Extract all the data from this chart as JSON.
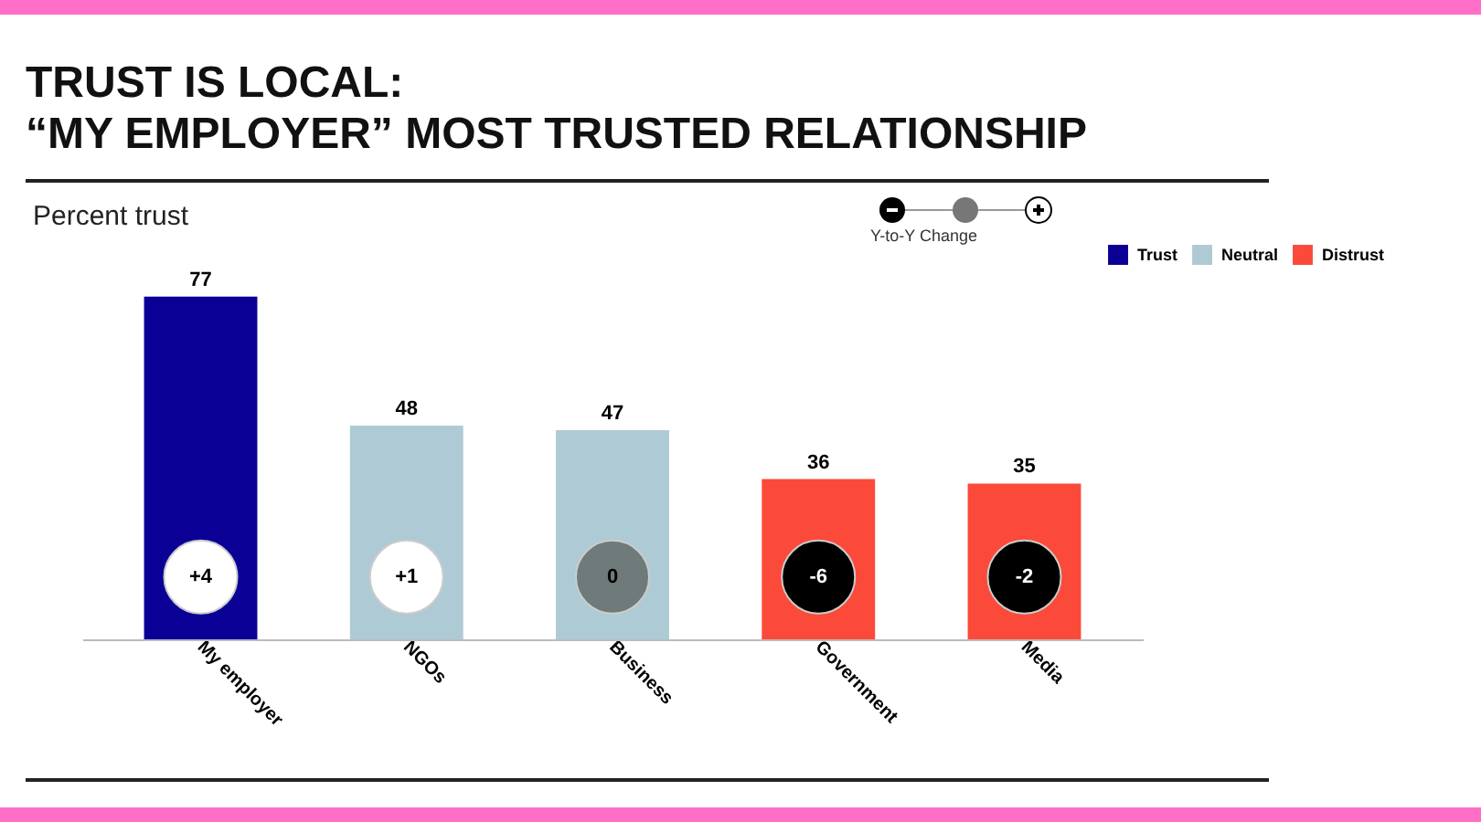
{
  "chart_data": {
    "type": "bar",
    "title": "TRUST IS LOCAL:\n“MY EMPLOYER” MOST TRUSTED RELATIONSHIP",
    "subtitle": "Percent trust",
    "categories": [
      "My employer",
      "NGOs",
      "Business",
      "Government",
      "Media"
    ],
    "series": [
      {
        "name": "Trust",
        "color": "#0a0096",
        "values": [
          77,
          null,
          null,
          null,
          null
        ]
      },
      {
        "name": "Neutral",
        "color": "#aecad5",
        "values": [
          null,
          48,
          47,
          null,
          null
        ]
      },
      {
        "name": "Distrust",
        "color": "#fb4a39",
        "values": [
          null,
          null,
          null,
          36,
          35
        ]
      }
    ],
    "data_labels": true,
    "tick_labels": "x",
    "legend": "top right",
    "grid": false,
    "annotations": [
      "Y-to-Y Change",
      {
        "text": "+4",
        "x": "My employer",
        "y": 14
      },
      {
        "text": "+1",
        "x": "NGOs",
        "y": 14
      },
      {
        "text": "0",
        "x": "Business",
        "y": 14
      },
      {
        "text": "-6",
        "x": "Government",
        "y": 14
      },
      {
        "text": "-2",
        "x": "Media",
        "y": 14
      }
    ]
  }
}
